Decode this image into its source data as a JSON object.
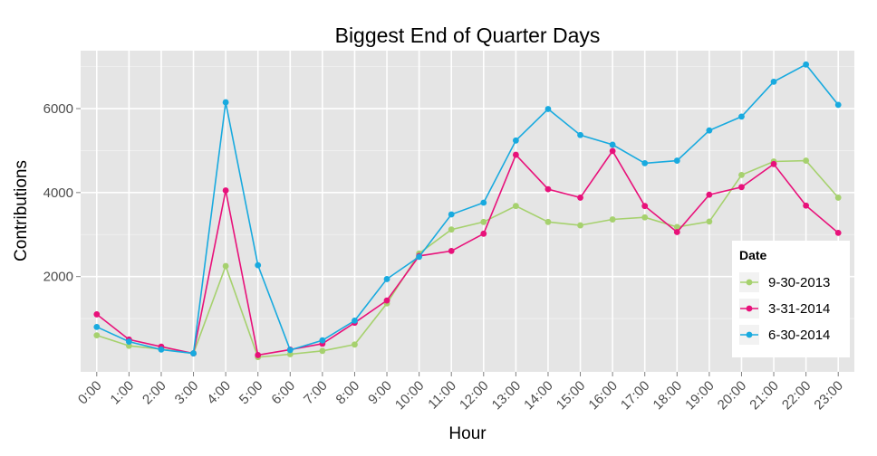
{
  "chart_data": {
    "type": "line",
    "title": "Biggest End of Quarter Days",
    "xlabel": "Hour",
    "ylabel": "Contributions",
    "categories": [
      "0:00",
      "1:00",
      "2:00",
      "3:00",
      "4:00",
      "5:00",
      "6:00",
      "7:00",
      "8:00",
      "9:00",
      "10:00",
      "11:00",
      "12:00",
      "13:00",
      "14:00",
      "15:00",
      "16:00",
      "17:00",
      "18:00",
      "19:00",
      "20:00",
      "21:00",
      "22:00",
      "23:00"
    ],
    "yticks": [
      2000,
      4000,
      6000
    ],
    "ylim": [
      -270,
      7380
    ],
    "grid": true,
    "legend": {
      "title": "Date",
      "position": "right"
    },
    "series": [
      {
        "name": "9-30-2013",
        "color": "#a6d16e",
        "values": [
          600,
          350,
          270,
          170,
          2250,
          80,
          150,
          230,
          380,
          1360,
          2550,
          3120,
          3300,
          3680,
          3300,
          3220,
          3360,
          3410,
          3180,
          3310,
          4420,
          4740,
          4760,
          3880
        ]
      },
      {
        "name": "3-31-2014",
        "color": "#e8117a",
        "values": [
          1100,
          500,
          330,
          170,
          4050,
          130,
          260,
          400,
          900,
          1430,
          2490,
          2610,
          3020,
          4900,
          4080,
          3880,
          4990,
          3680,
          3060,
          3950,
          4130,
          4680,
          3690,
          3040
        ]
      },
      {
        "name": "6-30-2014",
        "color": "#18aadf",
        "values": [
          800,
          450,
          260,
          170,
          6150,
          2270,
          250,
          480,
          950,
          1940,
          2470,
          3480,
          3760,
          5240,
          5990,
          5370,
          5140,
          4700,
          4760,
          5480,
          5810,
          6640,
          7050,
          6090
        ]
      }
    ]
  }
}
